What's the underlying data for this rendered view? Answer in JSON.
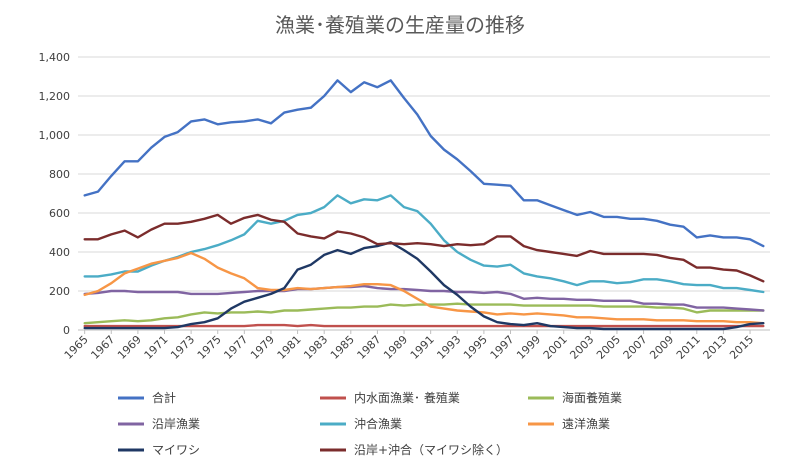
{
  "chart_data": {
    "type": "line",
    "title": "漁業･養殖業の生産量の推移",
    "xlabel": "",
    "ylabel": "",
    "ylim": [
      0,
      1400
    ],
    "y_ticks": [
      "0",
      "200",
      "400",
      "600",
      "800",
      "1,000",
      "1,200",
      "1,400"
    ],
    "x_ticks": [
      "1965",
      "1967",
      "1969",
      "1971",
      "1973",
      "1975",
      "1977",
      "1979",
      "1981",
      "1983",
      "1985",
      "1987",
      "1989",
      "1991",
      "1993",
      "1995",
      "1997",
      "1999",
      "2001",
      "2003",
      "2005",
      "2007",
      "2009",
      "2011",
      "2013",
      "2015"
    ],
    "x": [
      1965,
      1966,
      1967,
      1968,
      1969,
      1970,
      1971,
      1972,
      1973,
      1974,
      1975,
      1976,
      1977,
      1978,
      1979,
      1980,
      1981,
      1982,
      1983,
      1984,
      1985,
      1986,
      1987,
      1988,
      1989,
      1990,
      1991,
      1992,
      1993,
      1994,
      1995,
      1996,
      1997,
      1998,
      1999,
      2000,
      2001,
      2002,
      2003,
      2004,
      2005,
      2006,
      2007,
      2008,
      2009,
      2010,
      2011,
      2012,
      2013,
      2014,
      2015,
      2016
    ],
    "series": [
      {
        "name": "合計",
        "color": "#4472c4",
        "values": [
          690,
          710,
          790,
          865,
          865,
          935,
          990,
          1015,
          1070,
          1080,
          1055,
          1065,
          1070,
          1080,
          1060,
          1115,
          1130,
          1140,
          1200,
          1280,
          1220,
          1270,
          1245,
          1280,
          1190,
          1105,
          995,
          925,
          875,
          815,
          750,
          745,
          740,
          665,
          665,
          640,
          615,
          590,
          605,
          580,
          580,
          570,
          570,
          560,
          540,
          530,
          475,
          485,
          475,
          475,
          465,
          430
        ]
      },
      {
        "name": "内水面漁業･ 養殖業",
        "color": "#c0504d",
        "values": [
          20,
          20,
          20,
          20,
          20,
          20,
          20,
          20,
          20,
          20,
          20,
          20,
          20,
          25,
          25,
          25,
          20,
          25,
          20,
          20,
          20,
          20,
          20,
          20,
          20,
          20,
          20,
          20,
          20,
          20,
          20,
          20,
          20,
          20,
          20,
          20,
          20,
          20,
          20,
          20,
          20,
          20,
          20,
          20,
          20,
          20,
          20,
          20,
          20,
          20,
          20,
          20
        ]
      },
      {
        "name": "海面養殖業",
        "color": "#9bbb59",
        "values": [
          35,
          40,
          45,
          50,
          45,
          50,
          60,
          65,
          80,
          90,
          85,
          90,
          90,
          95,
          90,
          100,
          100,
          105,
          110,
          115,
          115,
          120,
          120,
          130,
          125,
          130,
          130,
          130,
          135,
          130,
          130,
          130,
          130,
          125,
          125,
          125,
          125,
          125,
          125,
          120,
          120,
          120,
          120,
          115,
          115,
          110,
          90,
          100,
          100,
          100,
          100,
          100
        ]
      },
      {
        "name": "沿岸漁業",
        "color": "#8064a2",
        "values": [
          185,
          190,
          200,
          200,
          195,
          195,
          195,
          195,
          185,
          185,
          185,
          190,
          195,
          200,
          200,
          200,
          210,
          210,
          215,
          220,
          220,
          225,
          215,
          210,
          210,
          205,
          200,
          200,
          195,
          195,
          190,
          195,
          185,
          160,
          165,
          160,
          160,
          155,
          155,
          150,
          150,
          150,
          135,
          135,
          130,
          130,
          115,
          115,
          115,
          110,
          105,
          100
        ]
      },
      {
        "name": "沖合漁業",
        "color": "#4bacc6",
        "values": [
          275,
          275,
          285,
          300,
          300,
          330,
          355,
          375,
          400,
          415,
          435,
          460,
          490,
          560,
          545,
          560,
          590,
          600,
          630,
          690,
          650,
          670,
          665,
          690,
          630,
          610,
          545,
          460,
          400,
          360,
          330,
          325,
          335,
          290,
          275,
          265,
          250,
          230,
          250,
          250,
          240,
          245,
          260,
          260,
          250,
          235,
          230,
          230,
          215,
          215,
          205,
          195
        ]
      },
      {
        "name": "遠洋漁業",
        "color": "#f79646",
        "values": [
          180,
          200,
          240,
          290,
          315,
          340,
          355,
          370,
          395,
          365,
          320,
          290,
          265,
          215,
          205,
          205,
          215,
          210,
          215,
          220,
          225,
          235,
          235,
          230,
          200,
          160,
          120,
          110,
          100,
          95,
          90,
          80,
          85,
          80,
          85,
          80,
          75,
          65,
          65,
          60,
          55,
          55,
          55,
          50,
          50,
          50,
          45,
          45,
          45,
          40,
          40,
          35
        ]
      },
      {
        "name": "マイワシ",
        "color": "#1f3864",
        "values": [
          10,
          10,
          10,
          10,
          10,
          10,
          10,
          15,
          30,
          40,
          60,
          110,
          145,
          165,
          185,
          215,
          310,
          335,
          385,
          410,
          390,
          420,
          430,
          450,
          410,
          365,
          300,
          230,
          180,
          120,
          70,
          40,
          30,
          25,
          35,
          20,
          15,
          10,
          10,
          5,
          5,
          5,
          5,
          5,
          5,
          5,
          5,
          5,
          5,
          15,
          30,
          35
        ]
      },
      {
        "name": "沿岸+沖合（マイワシ除く）",
        "color": "#7b2c2c",
        "values": [
          465,
          465,
          490,
          510,
          475,
          515,
          545,
          545,
          555,
          570,
          590,
          545,
          575,
          590,
          565,
          555,
          495,
          480,
          470,
          505,
          495,
          475,
          440,
          445,
          440,
          445,
          440,
          430,
          440,
          435,
          440,
          480,
          480,
          430,
          410,
          400,
          390,
          380,
          405,
          390,
          390,
          390,
          390,
          385,
          370,
          360,
          320,
          320,
          310,
          305,
          280,
          250
        ]
      }
    ]
  }
}
